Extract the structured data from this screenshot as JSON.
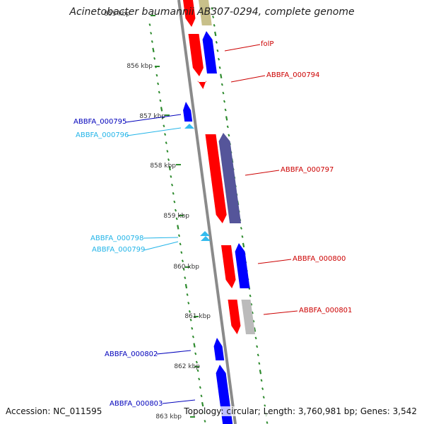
{
  "title": "Acinetobacter baumannii AB307-0294, complete genome",
  "footer": {
    "accession": "Accession: NC_011595",
    "topology": "Topology: circular; Length: 3,760,981 bp; Genes: 3,542"
  },
  "colors": {
    "backbone": "#8a8a8a",
    "gc_ticks": "#2e8b2e",
    "plus_cds": "#0000ff",
    "minus_cds": "#ff0000",
    "trna": "#33bbee",
    "dark_blue_gene": "#55559a",
    "grey_gene": "#bbbbbb",
    "olive_gene": "#c8c08a",
    "label_red": "#cc0000",
    "label_blue": "#0000bb",
    "label_cyan": "#22b4e8",
    "axis_text": "#333333"
  },
  "axis_labels": [
    "855 kbp",
    "856 kbp",
    "857 kbp",
    "858 kbp",
    "859 kbp",
    "860 kbp",
    "861 kbp",
    "862 kbp",
    "863 kbp"
  ],
  "gene_labels": [
    {
      "text": "folP",
      "color": "label_red"
    },
    {
      "text": "ABBFA_000794",
      "color": "label_red"
    },
    {
      "text": "ABBFA_000795",
      "color": "label_blue"
    },
    {
      "text": "ABBFA_000796",
      "color": "label_cyan"
    },
    {
      "text": "ABBFA_000797",
      "color": "label_red"
    },
    {
      "text": "ABBFA_000798",
      "color": "label_cyan"
    },
    {
      "text": "ABBFA_000799",
      "color": "label_cyan"
    },
    {
      "text": "ABBFA_000800",
      "color": "label_red"
    },
    {
      "text": "ABBFA_000801",
      "color": "label_red"
    },
    {
      "text": "ABBFA_000802",
      "color": "label_blue"
    },
    {
      "text": "ABBFA_000803",
      "color": "label_blue"
    }
  ]
}
